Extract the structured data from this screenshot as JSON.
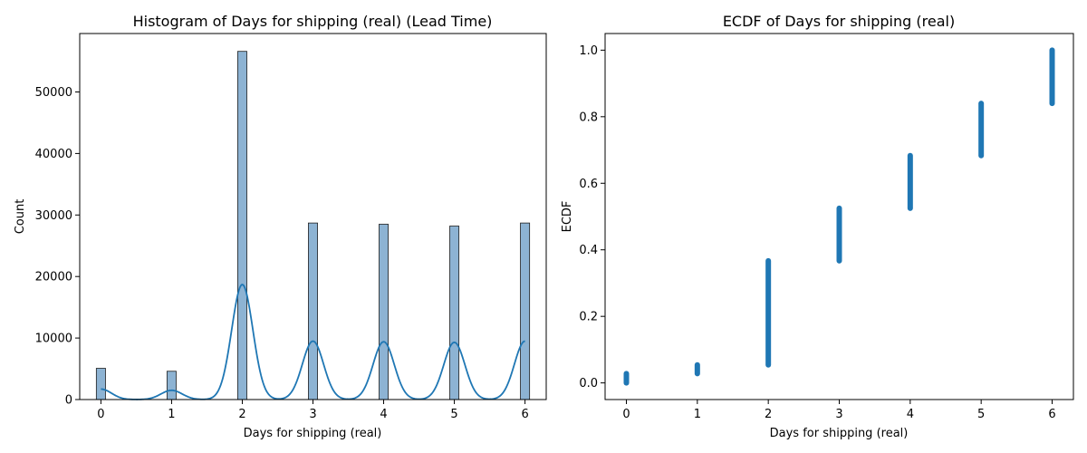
{
  "chart_data": [
    {
      "type": "bar",
      "title": "Histogram of Days for shipping (real) (Lead Time)",
      "xlabel": "Days for shipping (real)",
      "ylabel": "Count",
      "categories": [
        0,
        1,
        2,
        3,
        4,
        5,
        6
      ],
      "values": [
        5080,
        4600,
        56600,
        28700,
        28500,
        28200,
        28700
      ],
      "xlim": [
        -0.3,
        6.3
      ],
      "ylim": [
        0,
        59500
      ],
      "xticks": [
        "0",
        "1",
        "2",
        "3",
        "4",
        "5",
        "6"
      ],
      "yticks": [
        "0",
        "10000",
        "20000",
        "30000",
        "40000",
        "50000"
      ],
      "kde_overlay": true,
      "kde_peaks": [
        1700,
        1500,
        18700,
        9500,
        9400,
        9300,
        9500
      ],
      "bar_color": "#8db3d3",
      "line_color": "#1f77b4",
      "grid": false
    },
    {
      "type": "scatter",
      "title": "ECDF of Days for shipping (real)",
      "xlabel": "Days for shipping (real)",
      "ylabel": "ECDF",
      "series": [
        {
          "x": [
            0,
            1,
            2,
            3,
            4,
            5,
            6
          ],
          "y_min": [
            0.0,
            0.028,
            0.054,
            0.367,
            0.525,
            0.683,
            0.84
          ],
          "y_max": [
            0.028,
            0.054,
            0.367,
            0.525,
            0.683,
            0.84,
            1.0
          ]
        }
      ],
      "xlim": [
        -0.3,
        6.3
      ],
      "ylim": [
        -0.05,
        1.05
      ],
      "xticks": [
        "0",
        "1",
        "2",
        "3",
        "4",
        "5",
        "6"
      ],
      "yticks": [
        "0.0",
        "0.2",
        "0.4",
        "0.6",
        "0.8",
        "1.0"
      ],
      "point_color": "#1f77b4",
      "grid": false
    }
  ]
}
